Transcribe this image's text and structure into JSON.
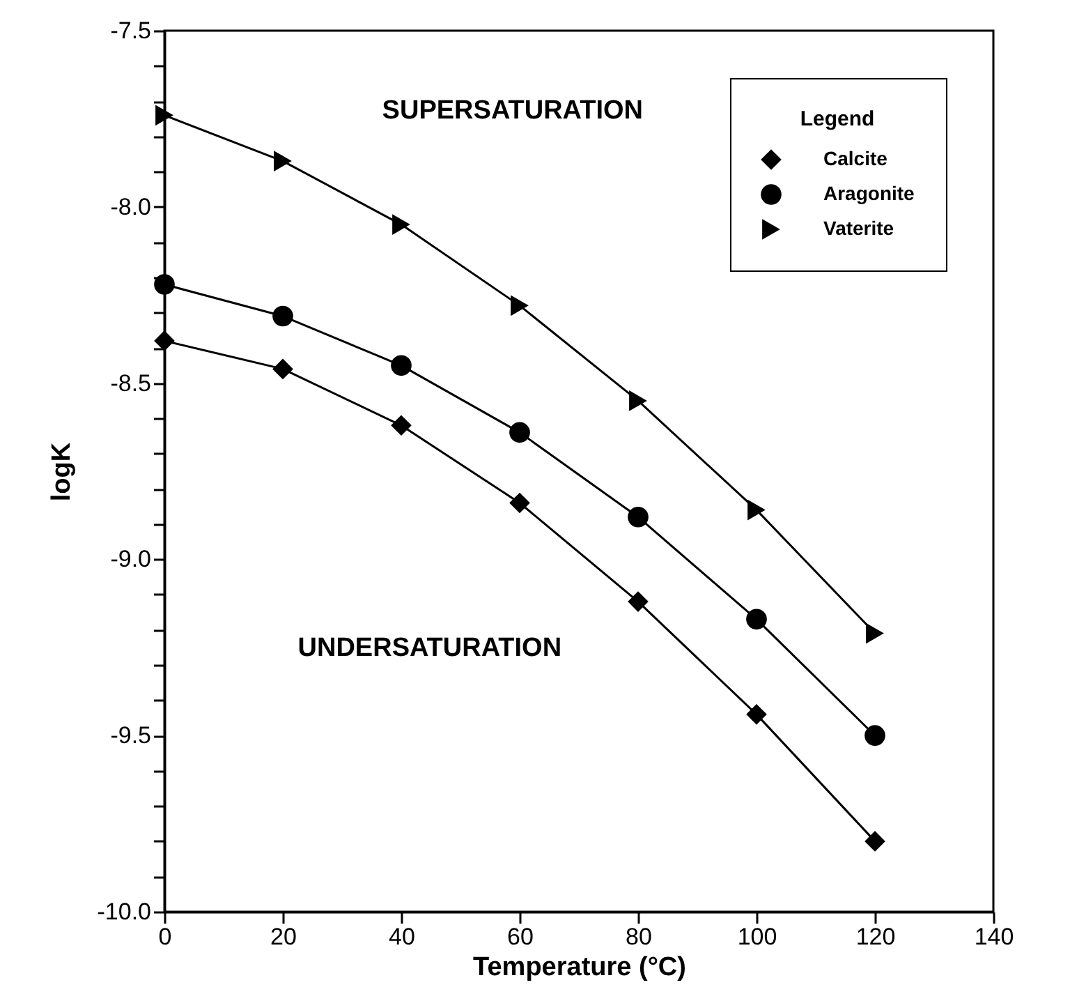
{
  "chart_data": {
    "type": "line",
    "xlabel": "Temperature (°C)",
    "ylabel": "logK",
    "legend_title": "Legend",
    "legend": "top right",
    "grid": false,
    "line_style": "solid",
    "x": [
      0,
      20,
      40,
      60,
      80,
      100,
      120
    ],
    "series": [
      {
        "name": "Calcite",
        "color": "#000000",
        "marker": "diamond",
        "values": [
          -8.38,
          -8.46,
          -8.62,
          -8.84,
          -9.12,
          -9.44,
          -9.8
        ]
      },
      {
        "name": "Aragonite",
        "color": "#000000",
        "marker": "circle",
        "values": [
          -8.22,
          -8.31,
          -8.45,
          -8.64,
          -8.88,
          -9.17,
          -9.5
        ]
      },
      {
        "name": "Vaterite",
        "color": "#000000",
        "marker": "triangle",
        "values": [
          -7.74,
          -7.87,
          -8.05,
          -8.28,
          -8.55,
          -8.86,
          -9.21
        ]
      }
    ],
    "xlim": [
      0,
      140
    ],
    "xticks": [
      0,
      20,
      40,
      60,
      80,
      100,
      120,
      140
    ],
    "ylim": [
      -10,
      -7.5
    ],
    "yticks": [
      {
        "value": -10,
        "label": "-10.0"
      },
      {
        "value": -9.9,
        "label": null
      },
      {
        "value": -9.8,
        "label": null
      },
      {
        "value": -9.7,
        "label": null
      },
      {
        "value": -9.6,
        "label": null
      },
      {
        "value": -9.5,
        "label": "-9.5"
      },
      {
        "value": -9.4,
        "label": null
      },
      {
        "value": -9.3,
        "label": null
      },
      {
        "value": -9.2,
        "label": null
      },
      {
        "value": -9.1,
        "label": null
      },
      {
        "value": -9,
        "label": "-9.0"
      },
      {
        "value": -8.9,
        "label": null
      },
      {
        "value": -8.8,
        "label": null
      },
      {
        "value": -8.7,
        "label": null
      },
      {
        "value": -8.6,
        "label": null
      },
      {
        "value": -8.5,
        "label": "-8.5"
      },
      {
        "value": -8.4,
        "label": null
      },
      {
        "value": -8.3,
        "label": null
      },
      {
        "value": -8.2,
        "label": null
      },
      {
        "value": -8.1,
        "label": null
      },
      {
        "value": -8,
        "label": "-8.0"
      },
      {
        "value": -7.9,
        "label": null
      },
      {
        "value": -7.8,
        "label": null
      },
      {
        "value": -7.7,
        "label": null
      },
      {
        "value": -7.6,
        "label": null
      },
      {
        "value": -7.5,
        "label": "-7.5"
      }
    ],
    "annotations": [
      "SUPERSATURATION",
      "UNDERSATURATION"
    ]
  }
}
